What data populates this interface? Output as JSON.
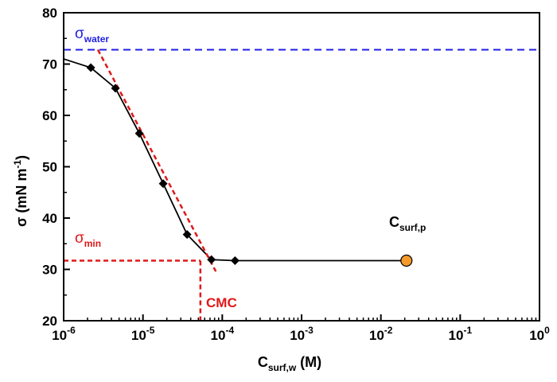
{
  "chart_data": {
    "type": "line",
    "title": "",
    "xlabel": {
      "main": "C",
      "sub": "surf,w",
      "rest": " (M)"
    },
    "ylabel": {
      "main": "σ (mN m",
      "sup": "-1",
      "rest": ")"
    },
    "xscale": "log",
    "xlim": [
      1e-06,
      1
    ],
    "ylim": [
      20,
      80
    ],
    "x_ticks": [
      {
        "value": 1e-06,
        "base": "10",
        "exp": "-6"
      },
      {
        "value": 1e-05,
        "base": "10",
        "exp": "-5"
      },
      {
        "value": 0.0001,
        "base": "10",
        "exp": "-4"
      },
      {
        "value": 0.001,
        "base": "10",
        "exp": "-3"
      },
      {
        "value": 0.01,
        "base": "10",
        "exp": "-2"
      },
      {
        "value": 0.1,
        "base": "10",
        "exp": "-1"
      },
      {
        "value": 1,
        "base": "10",
        "exp": "0"
      }
    ],
    "y_ticks": [
      20,
      30,
      40,
      50,
      60,
      70,
      80
    ],
    "grid": false,
    "series": [
      {
        "line_x": [
          1e-06,
          2.2e-06,
          4.5e-06,
          9e-06,
          1.8e-05,
          3.6e-05,
          7.3e-05,
          0.000145,
          0.021
        ],
        "line_y": [
          71,
          69.3,
          65.3,
          56.5,
          46.7,
          36.8,
          31.9,
          31.7,
          31.7
        ],
        "x": [
          2.2e-06,
          4.5e-06,
          9e-06,
          1.8e-05,
          3.6e-05,
          7.3e-05,
          0.000145
        ],
        "y": [
          69.3,
          65.3,
          56.5,
          46.7,
          36.8,
          31.9,
          31.7
        ],
        "marker": "diamond",
        "color": "#000000"
      }
    ],
    "special_point": {
      "x": 0.021,
      "y": 31.7,
      "color": "#f39a2b"
    },
    "reference_lines": {
      "sigma_water": {
        "y": 72.8,
        "color": "#1f1fe6",
        "style": "dashed"
      },
      "sigma_min": {
        "y": 31.7,
        "color": "#e01818",
        "style": "dashed"
      },
      "cmc": {
        "x": 5.3e-05,
        "color": "#e01818",
        "style": "dashed"
      },
      "fit_line": {
        "x": [
          2.7e-06,
          8.3e-05
        ],
        "y": [
          72.8,
          29.6
        ],
        "color": "#e01818",
        "style": "dashed"
      }
    },
    "annotations": {
      "sigma_water": {
        "main": "σ",
        "sub": "water"
      },
      "sigma_min": {
        "main": "σ",
        "sub": "min"
      },
      "cmc": "CMC",
      "c_surf_p": {
        "main": "C",
        "sub": "surf,p"
      }
    }
  }
}
